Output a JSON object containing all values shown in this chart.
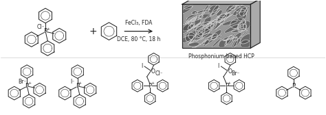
{
  "background_color": "#ffffff",
  "arrow_text_line1": "FeCl₃, FDA",
  "arrow_text_line2": "DCE, 80 °C, 18 h",
  "hcp_label": "Phosphonium-based HCP",
  "figure_width": 4.74,
  "figure_height": 1.68,
  "dpi": 100,
  "sem_bg": "#888888",
  "sem_cell": "#e0e0e0",
  "sem_dark": "#444444",
  "line_color": "#222222"
}
